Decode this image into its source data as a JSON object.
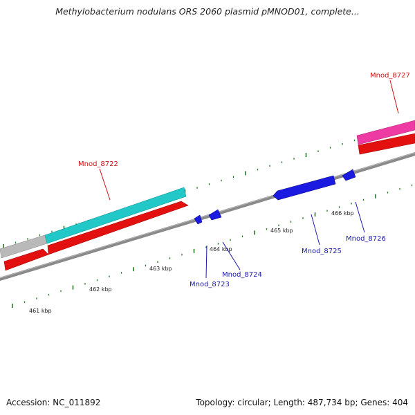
{
  "title": "Methylobacterium nodulans ORS 2060 plasmid pMNOD01, complete...",
  "footer": {
    "accession": "Accession: NC_011892",
    "summary": "Topology: circular; Length: 487,734 bp; Genes: 404"
  },
  "colors": {
    "backbone": "#8a8a8a",
    "tick": "#1e7a1e",
    "forward_label": "#cc1111",
    "reverse_label": "#1a1aaa",
    "cyan_feature": "#22c7c7",
    "red_feature": "#e31010",
    "gray_feature": "#b9b9b9",
    "pink_feature": "#ee3ba3",
    "blue_feature": "#1a1ae0"
  },
  "scale_labels": [
    "461 kbp",
    "462 kbp",
    "463 kbp",
    "464 kbp",
    "465 kbp",
    "466 kbp"
  ],
  "forward_genes": [
    {
      "label": "Mnod_8722",
      "color": "#cc1111"
    },
    {
      "label": "Mnod_8727",
      "color": "#cc1111"
    }
  ],
  "reverse_genes": [
    {
      "label": "Mnod_8723",
      "color": "#1a1aaa"
    },
    {
      "label": "Mnod_8724",
      "color": "#1a1aaa"
    },
    {
      "label": "Mnod_8725",
      "color": "#1a1aaa"
    },
    {
      "label": "Mnod_8726",
      "color": "#1a1aaa"
    }
  ]
}
